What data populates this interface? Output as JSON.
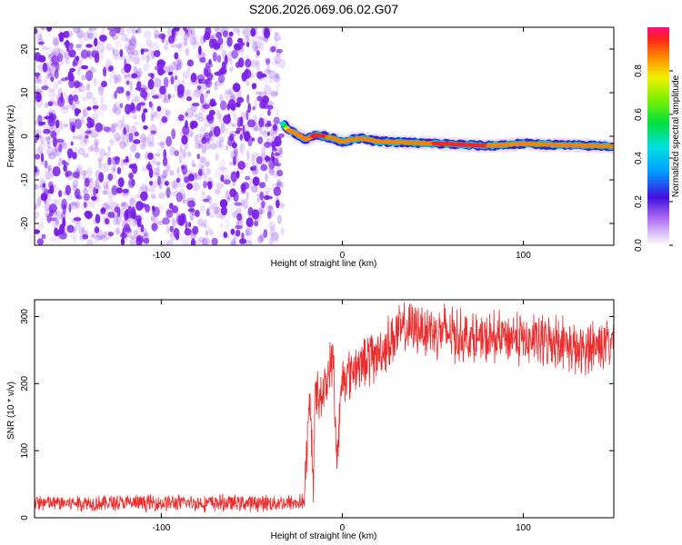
{
  "title": "S206.2026.069.06.02.G07",
  "colors": {
    "snr_line": "#ef2a2a",
    "noise": "#7a1ee8",
    "axis": "#000000"
  },
  "chart_data": [
    {
      "type": "heatmap",
      "name": "spectrogram",
      "xlabel": "Height of straight line (km)",
      "ylabel": "Frequency (Hz)",
      "xlim": [
        -170,
        150
      ],
      "ylim": [
        -25,
        25
      ],
      "xticks": [
        -100,
        0,
        100
      ],
      "yticks": [
        -20,
        -10,
        0,
        10,
        20
      ],
      "noise_region_end_km": -33,
      "signal_track": {
        "x": [
          -33,
          -30,
          -25,
          -20,
          -15,
          -10,
          -5,
          0,
          5,
          10,
          20,
          40,
          60,
          80,
          100,
          120,
          150
        ],
        "freq": [
          3,
          1.5,
          0.5,
          -0.8,
          0.3,
          0,
          -0.5,
          -1.3,
          -0.8,
          -0.5,
          -1.2,
          -1.5,
          -1.8,
          -2.2,
          -1.7,
          -2,
          -2.3
        ],
        "amplitude": [
          0.6,
          0.8,
          0.9,
          0.8,
          0.95,
          0.95,
          0.8,
          0.9,
          0.85,
          0.9,
          0.8,
          0.85,
          0.95,
          0.9,
          0.9,
          0.85,
          0.9
        ]
      },
      "colorbar": {
        "label": "Normalized spectral amplitude",
        "range": [
          0,
          1
        ],
        "ticks": [
          "0.0",
          "0.2",
          "0.4",
          "0.6",
          "0.8"
        ]
      }
    },
    {
      "type": "line",
      "name": "snr",
      "xlabel": "Height of straight line (km)",
      "ylabel": "SNR (10 * v/v)",
      "xlim": [
        -170,
        150
      ],
      "ylim": [
        0,
        325
      ],
      "xticks": [
        -100,
        0,
        100
      ],
      "yticks": [
        0,
        100,
        200,
        300
      ],
      "x": [
        -170,
        -100,
        -50,
        -25,
        -21,
        -18,
        -16,
        -15,
        -10,
        -5,
        -3,
        0,
        10,
        20,
        30,
        40,
        50,
        60,
        70,
        80,
        90,
        100,
        110,
        120,
        130,
        140,
        150
      ],
      "values": [
        22,
        22,
        22,
        22,
        25,
        170,
        60,
        180,
        190,
        240,
        80,
        210,
        230,
        245,
        275,
        285,
        280,
        275,
        268,
        262,
        272,
        265,
        262,
        268,
        245,
        258,
        262
      ]
    }
  ]
}
